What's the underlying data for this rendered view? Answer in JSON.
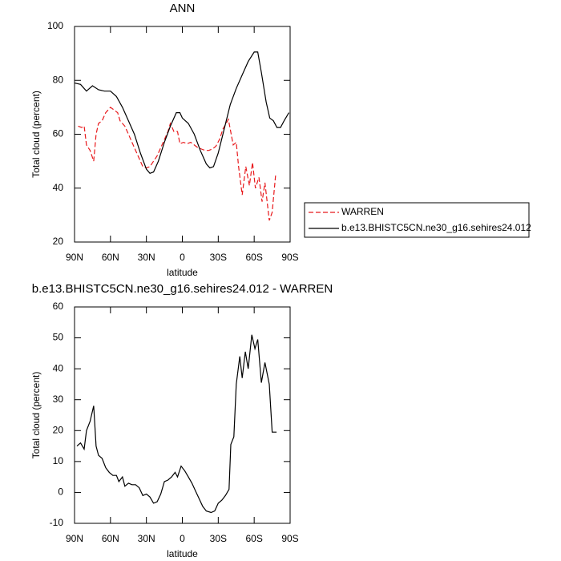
{
  "chart_data": [
    {
      "type": "line",
      "title": "ANN",
      "xlabel": "latitude",
      "ylabel": "Total cloud (percent)",
      "xlim": [
        90,
        -90
      ],
      "ylim": [
        20,
        100
      ],
      "xticks": [
        {
          "value": 90,
          "label": "90N"
        },
        {
          "value": 60,
          "label": "60N"
        },
        {
          "value": 30,
          "label": "30N"
        },
        0,
        {
          "value": -30,
          "label": "30S"
        },
        {
          "value": -60,
          "label": "60S"
        },
        {
          "value": -90,
          "label": "90S"
        }
      ],
      "yticks": [
        20,
        40,
        60,
        80,
        100
      ],
      "series": [
        {
          "name": "WARREN",
          "color": "#e8191c",
          "dashed": true,
          "x": [
            87,
            84,
            82,
            80,
            77,
            74,
            72,
            70,
            67,
            64,
            60,
            57,
            54,
            52,
            48,
            45,
            42,
            39,
            36,
            33,
            30,
            27,
            24,
            21,
            18,
            15,
            12,
            10,
            7,
            4,
            2,
            -1,
            -4,
            -7,
            -10,
            -13,
            -16,
            -19,
            -22,
            -25,
            -28,
            -31,
            -34,
            -38.5,
            -42.5,
            -45,
            -47,
            -50,
            -53,
            -56,
            -58.6,
            -61,
            -64,
            -66.6,
            -69,
            -72.6,
            -75,
            -78
          ],
          "values": [
            63,
            62.5,
            63,
            56,
            54,
            50,
            60,
            64,
            65,
            68,
            70,
            69,
            68,
            65,
            63,
            60,
            57,
            54,
            51,
            48,
            47.5,
            48,
            50,
            52,
            55,
            58,
            61,
            64,
            61,
            61,
            56.5,
            57,
            56.5,
            57,
            56,
            55,
            54.5,
            54,
            54,
            54.5,
            55.5,
            58,
            62,
            65.5,
            56,
            57,
            48,
            37.5,
            48,
            41,
            49.5,
            40,
            44,
            35,
            42,
            28,
            31,
            45.5
          ]
        },
        {
          "name": "b.e13.BHISTC5CN.ne30_g16.sehires24.012",
          "color": "#000000",
          "dashed": false,
          "x": [
            90,
            85,
            80,
            75,
            70,
            65,
            60,
            55,
            50,
            45,
            40,
            35,
            30,
            27,
            24,
            20,
            15,
            10,
            5,
            2,
            0,
            -5,
            -10,
            -15,
            -20,
            -23,
            -26,
            -30,
            -35,
            -40,
            -45,
            -50,
            -55,
            -60,
            -63,
            -66,
            -70,
            -73,
            -76,
            -79,
            -82,
            -85,
            -89
          ],
          "values": [
            79,
            78.5,
            76,
            78,
            76.5,
            76,
            76,
            74,
            70,
            65,
            60,
            53,
            47,
            45.5,
            46,
            50,
            57,
            63,
            68,
            68,
            66,
            64,
            60,
            54,
            49,
            47.5,
            48,
            53,
            62,
            71,
            77,
            82,
            87,
            90.5,
            90.5,
            83,
            72,
            66,
            65,
            62.5,
            62.5,
            65,
            68
          ]
        }
      ]
    },
    {
      "type": "line",
      "title": "b.e13.BHISTC5CN.ne30_g16.sehires24.012 - WARREN",
      "xlabel": "latitude",
      "ylabel": "Total cloud (percent)",
      "xlim": [
        90,
        -90
      ],
      "ylim": [
        -10,
        60
      ],
      "xticks": [
        {
          "value": 90,
          "label": "90N"
        },
        {
          "value": 60,
          "label": "60N"
        },
        {
          "value": 30,
          "label": "30N"
        },
        0,
        {
          "value": -30,
          "label": "30S"
        },
        {
          "value": -60,
          "label": "60S"
        },
        {
          "value": -90,
          "label": "90S"
        }
      ],
      "yticks": [
        -10,
        0,
        10,
        20,
        30,
        40,
        50,
        60
      ],
      "series": [
        {
          "color": "#000000",
          "dashed": false,
          "x": [
            88,
            85,
            82,
            80,
            77,
            74,
            72,
            70,
            67,
            64,
            61,
            58,
            55,
            53,
            50,
            48,
            45,
            42,
            39,
            36,
            33,
            30,
            27,
            24,
            21,
            18,
            15,
            12,
            9,
            6,
            4,
            1,
            -2,
            -5,
            -8,
            -11,
            -14,
            -17,
            -20,
            -24,
            -27,
            -30,
            -33,
            -36,
            -39,
            -40.5,
            -43,
            -45,
            -48,
            -50,
            -52.6,
            -55,
            -58,
            -60.6,
            -63,
            -66,
            -69,
            -72.6,
            -75,
            -78.7
          ],
          "values": [
            15,
            16,
            14,
            20,
            23,
            28,
            15,
            12,
            11,
            8,
            6.5,
            5.5,
            5.5,
            3.5,
            5,
            2,
            3,
            2.5,
            2.5,
            1.5,
            -1,
            -0.5,
            -1.5,
            -3.5,
            -3,
            -0.5,
            3.5,
            4,
            5,
            6.5,
            5,
            8.5,
            7,
            5,
            3,
            0.5,
            -2,
            -4.5,
            -6,
            -6.5,
            -6,
            -3.5,
            -2.5,
            -1,
            1,
            15.5,
            18,
            35,
            44,
            37,
            45.5,
            40,
            51,
            46.5,
            49.5,
            35.5,
            42,
            35,
            19.5,
            19.5
          ]
        }
      ]
    }
  ]
}
